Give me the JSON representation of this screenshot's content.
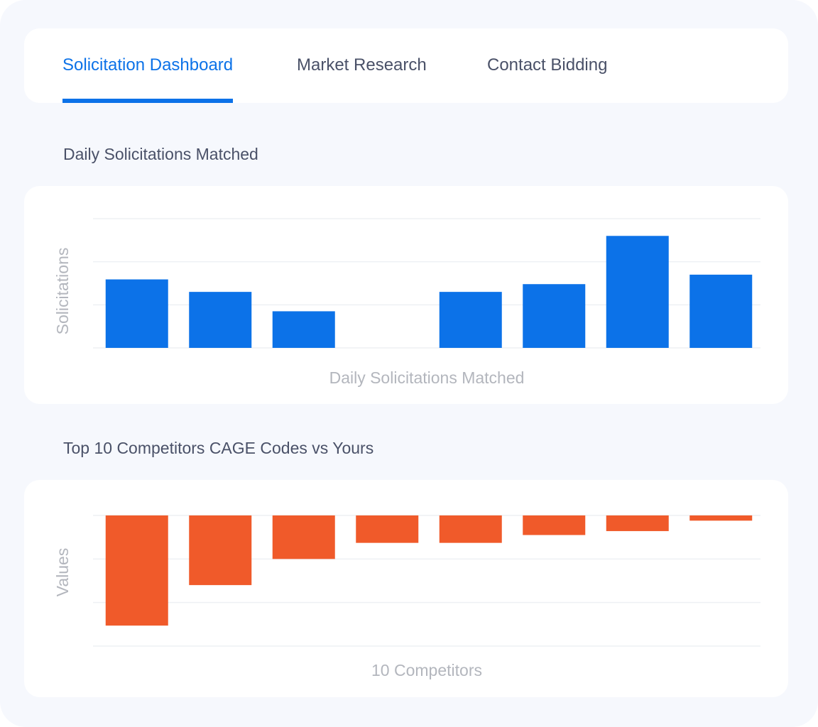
{
  "tabs": [
    {
      "label": "Solicitation Dashboard",
      "active": true
    },
    {
      "label": "Market Research",
      "active": false
    },
    {
      "label": "Contact Bidding",
      "active": false
    }
  ],
  "sections": {
    "daily": {
      "title": "Daily Solicitations Matched"
    },
    "competitors": {
      "title": "Top 10 Competitors CAGE Codes vs Yours"
    }
  },
  "colors": {
    "accent": "#0c72e8",
    "bar_positive": "#0c72e8",
    "bar_negative": "#f05a2a"
  },
  "chart_data": [
    {
      "type": "bar",
      "title": "",
      "xlabel": "Daily Solicitations Matched",
      "ylabel": "Solicitations",
      "ylim": [
        0,
        3
      ],
      "grid": true,
      "values": [
        1.59,
        1.3,
        0.85,
        0,
        1.3,
        1.48,
        2.6,
        1.7
      ]
    },
    {
      "type": "bar",
      "title": "",
      "xlabel": "10 Competitors",
      "ylabel": "Values",
      "ylim": [
        -3,
        0
      ],
      "grid": true,
      "values": [
        -2.53,
        -1.6,
        -1.0,
        -0.63,
        -0.63,
        -0.45,
        -0.36,
        -0.12
      ]
    }
  ]
}
